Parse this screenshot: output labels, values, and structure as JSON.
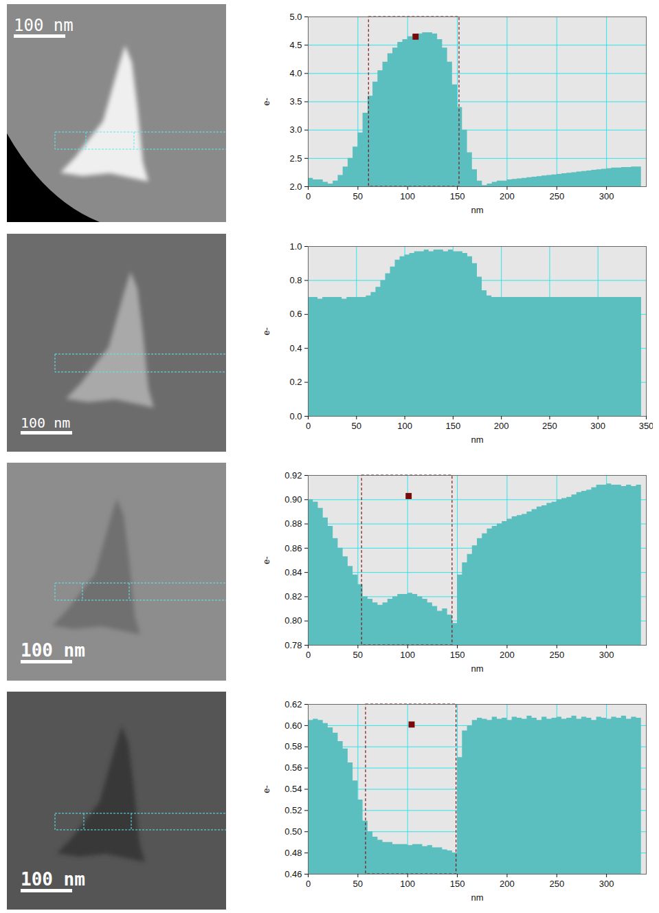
{
  "chart_data": [
    {
      "type": "area",
      "color": "#5bbfbf",
      "grid": true,
      "xlabel": "nm",
      "ylabel": "e-",
      "xlim": [
        0,
        340
      ],
      "ylim": [
        2,
        5
      ],
      "xticks": [
        0,
        50,
        100,
        150,
        200,
        250,
        300
      ],
      "yticks": [
        {
          "value": 2,
          "label": "2.0"
        },
        2.5,
        {
          "value": 3,
          "label": "3.0"
        },
        3.5,
        {
          "value": 4,
          "label": "4.0"
        },
        4.5,
        {
          "value": 5,
          "label": "5.0"
        }
      ],
      "selection_range": [
        61,
        152
      ],
      "highlight_point": {
        "x": 108,
        "y": 4.65
      },
      "x": [
        0,
        5,
        10,
        15,
        20,
        25,
        30,
        35,
        40,
        45,
        50,
        55,
        60,
        65,
        70,
        75,
        80,
        85,
        90,
        95,
        100,
        105,
        110,
        115,
        120,
        125,
        130,
        135,
        140,
        145,
        150,
        155,
        160,
        165,
        170,
        175,
        180,
        185,
        190,
        195,
        200,
        205,
        210,
        215,
        220,
        225,
        230,
        235,
        240,
        245,
        250,
        255,
        260,
        265,
        270,
        275,
        280,
        285,
        290,
        295,
        300,
        305,
        310,
        315,
        320,
        325,
        330,
        335
      ],
      "values": [
        2.15,
        2.12,
        2.12,
        2.08,
        2.05,
        2.1,
        2.2,
        2.35,
        2.5,
        2.7,
        2.95,
        3.3,
        3.6,
        3.85,
        4.05,
        4.2,
        4.35,
        4.45,
        4.55,
        4.6,
        4.65,
        4.68,
        4.7,
        4.72,
        4.72,
        4.7,
        4.6,
        4.45,
        4.2,
        3.8,
        3.4,
        3.0,
        2.6,
        2.3,
        2.1,
        2.02,
        2.05,
        2.08,
        2.1,
        2.1,
        2.12,
        2.13,
        2.14,
        2.15,
        2.16,
        2.17,
        2.18,
        2.19,
        2.2,
        2.21,
        2.22,
        2.23,
        2.24,
        2.25,
        2.26,
        2.27,
        2.28,
        2.29,
        2.3,
        2.31,
        2.32,
        2.33,
        2.33,
        2.34,
        2.34,
        2.35,
        2.35,
        2.36
      ]
    },
    {
      "type": "area",
      "color": "#5bbfbf",
      "grid": true,
      "xlabel": "nm",
      "ylabel": "e-",
      "xlim": [
        0,
        350
      ],
      "ylim": [
        0,
        1
      ],
      "xticks": [
        0,
        50,
        100,
        150,
        200,
        250,
        300,
        350
      ],
      "yticks": [
        {
          "value": 0,
          "label": "0.0"
        },
        0.2,
        0.4,
        0.6,
        0.8,
        {
          "value": 1,
          "label": "1.0"
        }
      ],
      "x": [
        0,
        5,
        10,
        15,
        20,
        25,
        30,
        35,
        40,
        45,
        50,
        55,
        60,
        65,
        70,
        75,
        80,
        85,
        90,
        95,
        100,
        105,
        110,
        115,
        120,
        125,
        130,
        135,
        140,
        145,
        150,
        155,
        160,
        165,
        170,
        175,
        180,
        185,
        190,
        195,
        200,
        205,
        210,
        215,
        220,
        225,
        230,
        235,
        240,
        245,
        250,
        255,
        260,
        265,
        270,
        275,
        280,
        285,
        290,
        295,
        300,
        305,
        310,
        315,
        320,
        325,
        330,
        335,
        340,
        345
      ],
      "values": [
        0.7,
        0.7,
        0.69,
        0.7,
        0.7,
        0.7,
        0.7,
        0.69,
        0.7,
        0.7,
        0.7,
        0.7,
        0.71,
        0.73,
        0.76,
        0.8,
        0.84,
        0.88,
        0.92,
        0.94,
        0.95,
        0.96,
        0.97,
        0.97,
        0.98,
        0.97,
        0.98,
        0.98,
        0.97,
        0.98,
        0.97,
        0.97,
        0.96,
        0.94,
        0.9,
        0.82,
        0.74,
        0.71,
        0.7,
        0.7,
        0.7,
        0.7,
        0.7,
        0.7,
        0.7,
        0.7,
        0.7,
        0.7,
        0.7,
        0.7,
        0.7,
        0.7,
        0.7,
        0.7,
        0.7,
        0.7,
        0.7,
        0.7,
        0.7,
        0.7,
        0.7,
        0.7,
        0.7,
        0.7,
        0.7,
        0.7,
        0.7,
        0.7,
        0.7,
        0.7
      ]
    },
    {
      "type": "area",
      "color": "#5bbfbf",
      "grid": true,
      "xlabel": "nm",
      "ylabel": "e-",
      "xlim": [
        0,
        340
      ],
      "ylim": [
        0.78,
        0.92
      ],
      "xticks": [
        0,
        50,
        100,
        150,
        200,
        250,
        300
      ],
      "yticks": [
        0.78,
        {
          "value": 0.8,
          "label": "0.80"
        },
        0.82,
        0.84,
        0.86,
        0.88,
        {
          "value": 0.9,
          "label": "0.90"
        },
        0.92
      ],
      "selection_range": [
        54,
        145
      ],
      "highlight_point": {
        "x": 101,
        "y": 0.903
      },
      "x": [
        0,
        5,
        10,
        15,
        20,
        25,
        30,
        35,
        40,
        45,
        50,
        55,
        60,
        65,
        70,
        75,
        80,
        85,
        90,
        95,
        100,
        105,
        110,
        115,
        120,
        125,
        130,
        135,
        140,
        145,
        150,
        155,
        160,
        165,
        170,
        175,
        180,
        185,
        190,
        195,
        200,
        205,
        210,
        215,
        220,
        225,
        230,
        235,
        240,
        245,
        250,
        255,
        260,
        265,
        270,
        275,
        280,
        285,
        290,
        295,
        300,
        305,
        310,
        315,
        320,
        325,
        330,
        335
      ],
      "values": [
        0.9,
        0.898,
        0.893,
        0.885,
        0.878,
        0.868,
        0.86,
        0.853,
        0.845,
        0.838,
        0.83,
        0.82,
        0.818,
        0.815,
        0.813,
        0.815,
        0.818,
        0.82,
        0.822,
        0.822,
        0.823,
        0.822,
        0.82,
        0.818,
        0.815,
        0.812,
        0.808,
        0.81,
        0.805,
        0.798,
        0.838,
        0.848,
        0.855,
        0.862,
        0.868,
        0.872,
        0.876,
        0.878,
        0.88,
        0.882,
        0.884,
        0.886,
        0.887,
        0.888,
        0.89,
        0.892,
        0.894,
        0.895,
        0.897,
        0.898,
        0.9,
        0.901,
        0.902,
        0.904,
        0.906,
        0.907,
        0.908,
        0.91,
        0.912,
        0.912,
        0.913,
        0.912,
        0.912,
        0.911,
        0.912,
        0.911,
        0.912,
        0.912
      ]
    },
    {
      "type": "area",
      "color": "#5bbfbf",
      "grid": true,
      "xlabel": "nm",
      "ylabel": "e-",
      "xlim": [
        0,
        340
      ],
      "ylim": [
        0.46,
        0.62
      ],
      "xticks": [
        0,
        50,
        100,
        150,
        200,
        250,
        300
      ],
      "yticks": [
        0.46,
        0.48,
        {
          "value": 0.5,
          "label": "0.50"
        },
        0.52,
        0.54,
        0.56,
        0.58,
        {
          "value": 0.6,
          "label": "0.60"
        },
        0.62
      ],
      "selection_range": [
        58,
        149
      ],
      "highlight_point": {
        "x": 104,
        "y": 0.601
      },
      "x": [
        0,
        5,
        10,
        15,
        20,
        25,
        30,
        35,
        40,
        45,
        50,
        55,
        60,
        65,
        70,
        75,
        80,
        85,
        90,
        95,
        100,
        105,
        110,
        115,
        120,
        125,
        130,
        135,
        140,
        145,
        150,
        155,
        160,
        165,
        170,
        175,
        180,
        185,
        190,
        195,
        200,
        205,
        210,
        215,
        220,
        225,
        230,
        235,
        240,
        245,
        250,
        255,
        260,
        265,
        270,
        275,
        280,
        285,
        290,
        295,
        300,
        305,
        310,
        315,
        320,
        325,
        330,
        335
      ],
      "values": [
        0.605,
        0.606,
        0.605,
        0.602,
        0.598,
        0.593,
        0.585,
        0.578,
        0.565,
        0.548,
        0.53,
        0.51,
        0.5,
        0.495,
        0.492,
        0.49,
        0.49,
        0.488,
        0.488,
        0.488,
        0.487,
        0.488,
        0.488,
        0.486,
        0.487,
        0.485,
        0.485,
        0.483,
        0.482,
        0.48,
        0.57,
        0.595,
        0.6,
        0.605,
        0.607,
        0.606,
        0.605,
        0.608,
        0.606,
        0.607,
        0.605,
        0.608,
        0.607,
        0.606,
        0.609,
        0.607,
        0.605,
        0.608,
        0.606,
        0.607,
        0.608,
        0.606,
        0.607,
        0.609,
        0.606,
        0.608,
        0.607,
        0.605,
        0.608,
        0.607,
        0.606,
        0.608,
        0.607,
        0.609,
        0.606,
        0.608,
        0.607,
        0.609
      ]
    }
  ],
  "images": [
    {
      "scale_bar_label": "100 nm"
    },
    {
      "scale_bar_label": "100 nm"
    },
    {
      "scale_bar_label": "100 nm"
    },
    {
      "scale_bar_label": "100 nm"
    }
  ]
}
